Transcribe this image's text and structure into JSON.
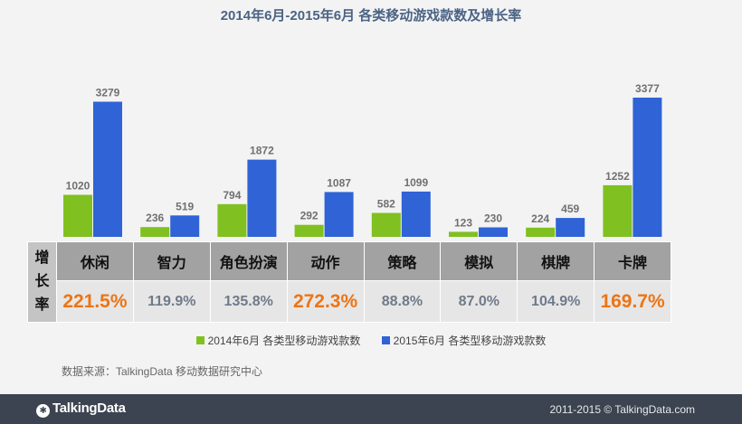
{
  "chart_data": {
    "type": "bar",
    "title": "2014年6月-2015年6月 各类移动游戏款数及增长率",
    "categories": [
      "休闲",
      "智力",
      "角色扮演",
      "动作",
      "策略",
      "模拟",
      "棋牌",
      "卡牌"
    ],
    "series": [
      {
        "name": "2014年6月 各类型移动游戏款数",
        "color": "#80c020",
        "values": [
          1020,
          236,
          794,
          292,
          582,
          123,
          224,
          1252
        ]
      },
      {
        "name": "2015年6月 各类型移动游戏款数",
        "color": "#2f63d6",
        "values": [
          3279,
          519,
          1872,
          1087,
          1099,
          230,
          459,
          3377
        ]
      }
    ],
    "ylim": [
      0,
      3377
    ],
    "xlabel": "",
    "ylabel": "",
    "growth_header": "增长率",
    "growth_rates": [
      "221.5%",
      "119.9%",
      "135.8%",
      "272.3%",
      "88.8%",
      "87.0%",
      "104.9%",
      "169.7%"
    ],
    "highlight_color": "#ed7414",
    "highlighted_indices": [
      0,
      3,
      7
    ]
  },
  "source": "数据来源：TalkingData 移动数据研究中心",
  "footer": {
    "logo": "TalkingData",
    "copyright": "2011-2015 © TalkingData.com"
  }
}
